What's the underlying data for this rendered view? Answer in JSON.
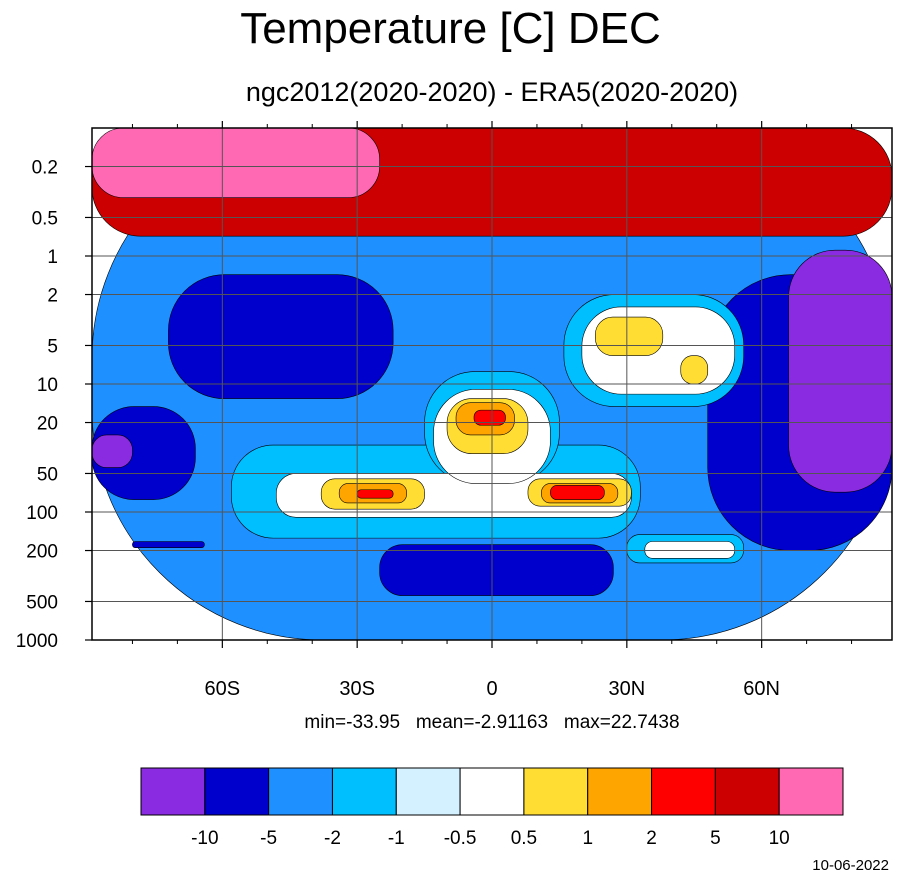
{
  "chart_data": {
    "type": "heatmap",
    "title": "Temperature [C] DEC",
    "subtitle": "ngc2012(2020-2020) - ERA5(2020-2020)",
    "x_ticks": [
      {
        "value": -60,
        "label": "60S"
      },
      {
        "value": -30,
        "label": "30S"
      },
      {
        "value": 0,
        "label": "0"
      },
      {
        "value": 30,
        "label": "30N"
      },
      {
        "value": 60,
        "label": "60N"
      }
    ],
    "x_range": [
      -89,
      89
    ],
    "y_scale": "log",
    "y_range": [
      1000,
      0.1
    ],
    "y_ticks": [
      0.2,
      0.5,
      1,
      2,
      5,
      10,
      20,
      50,
      100,
      200,
      500,
      1000
    ],
    "grid": true,
    "stats": {
      "min": "-33.95",
      "mean": "-2.91163",
      "max": "22.7438"
    },
    "colorbar": {
      "labels": [
        "-10",
        "-5",
        "-2",
        "-1",
        "-0.5",
        "0.5",
        "1",
        "2",
        "5",
        "10"
      ],
      "colors": [
        "#8a2be2",
        "#0000cd",
        "#1e90ff",
        "#00bfff",
        "#d4f1ff",
        "#ffffff",
        "#ffdd33",
        "#ffa500",
        "#ff0000",
        "#cc0000",
        "#ff69b4"
      ]
    },
    "regions": [
      {
        "level": 2,
        "lat": [
          -89,
          89
        ],
        "p": [
          1000,
          0.1
        ]
      },
      {
        "level": 9,
        "lat": [
          -89,
          89
        ],
        "p": [
          0.7,
          0.1
        ]
      },
      {
        "level": 10,
        "lat": [
          -89,
          -25
        ],
        "p": [
          0.35,
          0.1
        ]
      },
      {
        "level": 1,
        "lat": [
          -72,
          -22
        ],
        "p": [
          1.4,
          13
        ]
      },
      {
        "level": 1,
        "lat": [
          48,
          89
        ],
        "p": [
          1.4,
          200
        ]
      },
      {
        "level": 0,
        "lat": [
          66,
          89
        ],
        "p": [
          0.9,
          70
        ]
      },
      {
        "level": 1,
        "lat": [
          -89,
          -66
        ],
        "p": [
          15,
          80
        ]
      },
      {
        "level": 0,
        "lat": [
          -89,
          -80
        ],
        "p": [
          25,
          45
        ]
      },
      {
        "level": 1,
        "lat": [
          -25,
          27
        ],
        "p": [
          180,
          450
        ]
      },
      {
        "level": 1,
        "lat": [
          -80,
          -64
        ],
        "p": [
          170,
          190
        ]
      },
      {
        "level": 3,
        "lat": [
          -58,
          33
        ],
        "p": [
          30,
          160
        ]
      },
      {
        "level": 3,
        "lat": [
          -15,
          15
        ],
        "p": [
          8,
          60
        ]
      },
      {
        "level": 3,
        "lat": [
          16,
          56
        ],
        "p": [
          2,
          15
        ]
      },
      {
        "level": 3,
        "lat": [
          30,
          56
        ],
        "p": [
          150,
          250
        ]
      },
      {
        "level": 5,
        "lat": [
          -48,
          31
        ],
        "p": [
          50,
          110
        ]
      },
      {
        "level": 5,
        "lat": [
          -13,
          13
        ],
        "p": [
          11,
          60
        ]
      },
      {
        "level": 5,
        "lat": [
          20,
          54
        ],
        "p": [
          2.5,
          12
        ]
      },
      {
        "level": 5,
        "lat": [
          34,
          54
        ],
        "p": [
          170,
          230
        ]
      },
      {
        "level": 6,
        "lat": [
          -38,
          -15
        ],
        "p": [
          55,
          95
        ]
      },
      {
        "level": 6,
        "lat": [
          8,
          31
        ],
        "p": [
          55,
          90
        ]
      },
      {
        "level": 6,
        "lat": [
          -10,
          8
        ],
        "p": [
          13,
          35
        ]
      },
      {
        "level": 6,
        "lat": [
          23,
          38
        ],
        "p": [
          3,
          6
        ]
      },
      {
        "level": 6,
        "lat": [
          42,
          48
        ],
        "p": [
          6,
          10
        ]
      },
      {
        "level": 7,
        "lat": [
          -34,
          -19
        ],
        "p": [
          60,
          85
        ]
      },
      {
        "level": 7,
        "lat": [
          11,
          28
        ],
        "p": [
          60,
          85
        ]
      },
      {
        "level": 7,
        "lat": [
          -8,
          5
        ],
        "p": [
          14,
          25
        ]
      },
      {
        "level": 8,
        "lat": [
          -30,
          -22
        ],
        "p": [
          67,
          78
        ]
      },
      {
        "level": 8,
        "lat": [
          13,
          25
        ],
        "p": [
          62,
          80
        ]
      },
      {
        "level": 8,
        "lat": [
          -4,
          3
        ],
        "p": [
          16,
          21
        ]
      }
    ]
  },
  "page": {
    "title": "Temperature [C] DEC",
    "subtitle": "ngc2012(2020-2020) - ERA5(2020-2020)",
    "stats_text": "min=-33.95   mean=-2.91163   max=22.7438",
    "date": "10-06-2022"
  }
}
